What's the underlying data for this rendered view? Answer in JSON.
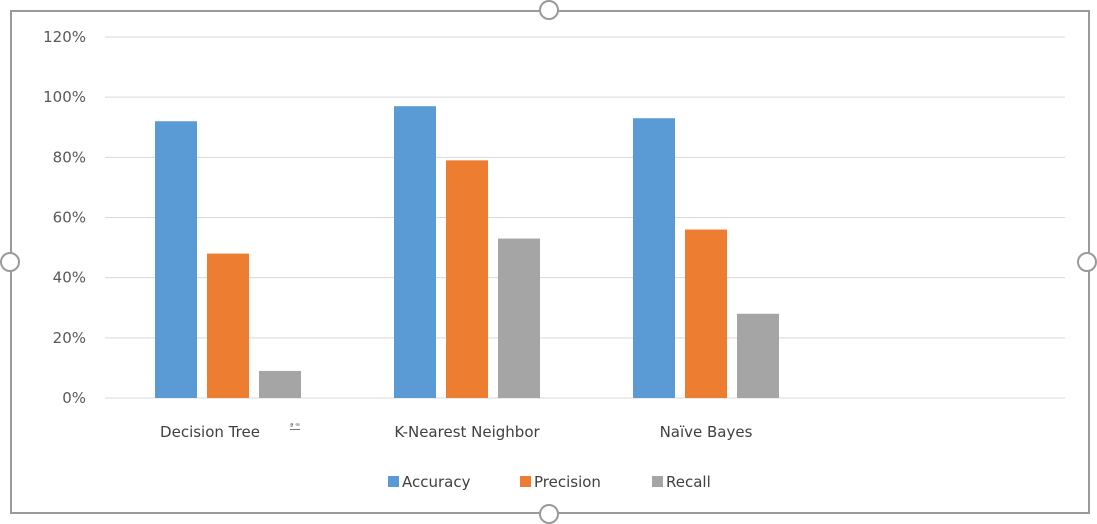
{
  "chart_data": {
    "type": "bar",
    "categories": [
      "Decision Tree",
      "K-Nearest Neighbor",
      "Naïve Bayes"
    ],
    "category_note": "ª  ꟹ",
    "series": [
      {
        "name": "Accuracy",
        "color": "#5b9bd5",
        "values": [
          92,
          97,
          93
        ]
      },
      {
        "name": "Precision",
        "color": "#ed7d31",
        "values": [
          48,
          79,
          56
        ]
      },
      {
        "name": "Recall",
        "color": "#a5a5a5",
        "values": [
          9,
          53,
          28
        ]
      }
    ],
    "y_ticks": [
      "0%",
      "20%",
      "40%",
      "60%",
      "80%",
      "100%",
      "120%"
    ],
    "ylim": [
      0,
      120
    ],
    "y_unit": "%",
    "grid": true,
    "legend_position": "bottom",
    "colors": {
      "gridline": "#d9d9d9",
      "frame": "#9a9a9a"
    }
  }
}
